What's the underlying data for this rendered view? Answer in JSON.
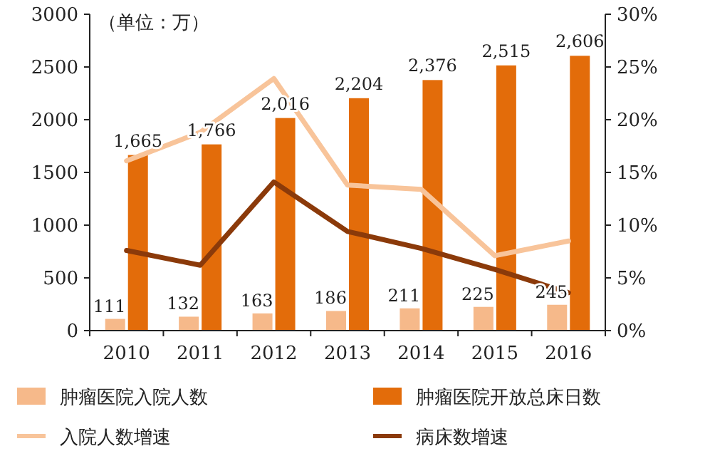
{
  "chart_data": {
    "type": "bar",
    "categories": [
      "2010",
      "2011",
      "2012",
      "2013",
      "2014",
      "2015",
      "2016"
    ],
    "series": [
      {
        "name": "肿瘤医院入院人数",
        "color": "#f6b98a",
        "values": [
          111,
          132,
          163,
          186,
          211,
          225,
          245
        ],
        "value_labels": [
          "111",
          "132",
          "163",
          "186",
          "211",
          "225",
          "245"
        ]
      },
      {
        "name": "肿瘤医院开放总床日数",
        "color": "#e36c0a",
        "values": [
          1665,
          1766,
          2016,
          2204,
          2376,
          2515,
          2606
        ],
        "value_labels": [
          "1,665",
          "1,766",
          "2,016",
          "2,204",
          "2,376",
          "2,515",
          "2,606"
        ]
      },
      {
        "name": "入院人数增速",
        "type": "line",
        "axis": "y2",
        "color": "#f8c49a",
        "values": [
          16.1,
          18.8,
          23.9,
          13.8,
          13.4,
          7.1,
          8.5
        ]
      },
      {
        "name": "病床数增速",
        "type": "line",
        "axis": "y2",
        "color": "#8b3a0a",
        "values": [
          7.6,
          6.2,
          14.1,
          9.4,
          7.8,
          5.8,
          3.6
        ]
      }
    ],
    "ylim": [
      0,
      3000
    ],
    "yticks": [
      0,
      500,
      1000,
      1500,
      2000,
      2500,
      3000
    ],
    "y2lim": [
      0,
      30
    ],
    "y2ticks": [
      {
        "value": 0,
        "label": "0%"
      },
      {
        "value": 5,
        "label": "5%"
      },
      {
        "value": 10,
        "label": "10%"
      },
      {
        "value": 15,
        "label": "15%"
      },
      {
        "value": 20,
        "label": "20%"
      },
      {
        "value": 25,
        "label": "25%"
      },
      {
        "value": 30,
        "label": "30%"
      }
    ],
    "annotations": [
      "（单位：万）"
    ],
    "legend": "bottom"
  }
}
